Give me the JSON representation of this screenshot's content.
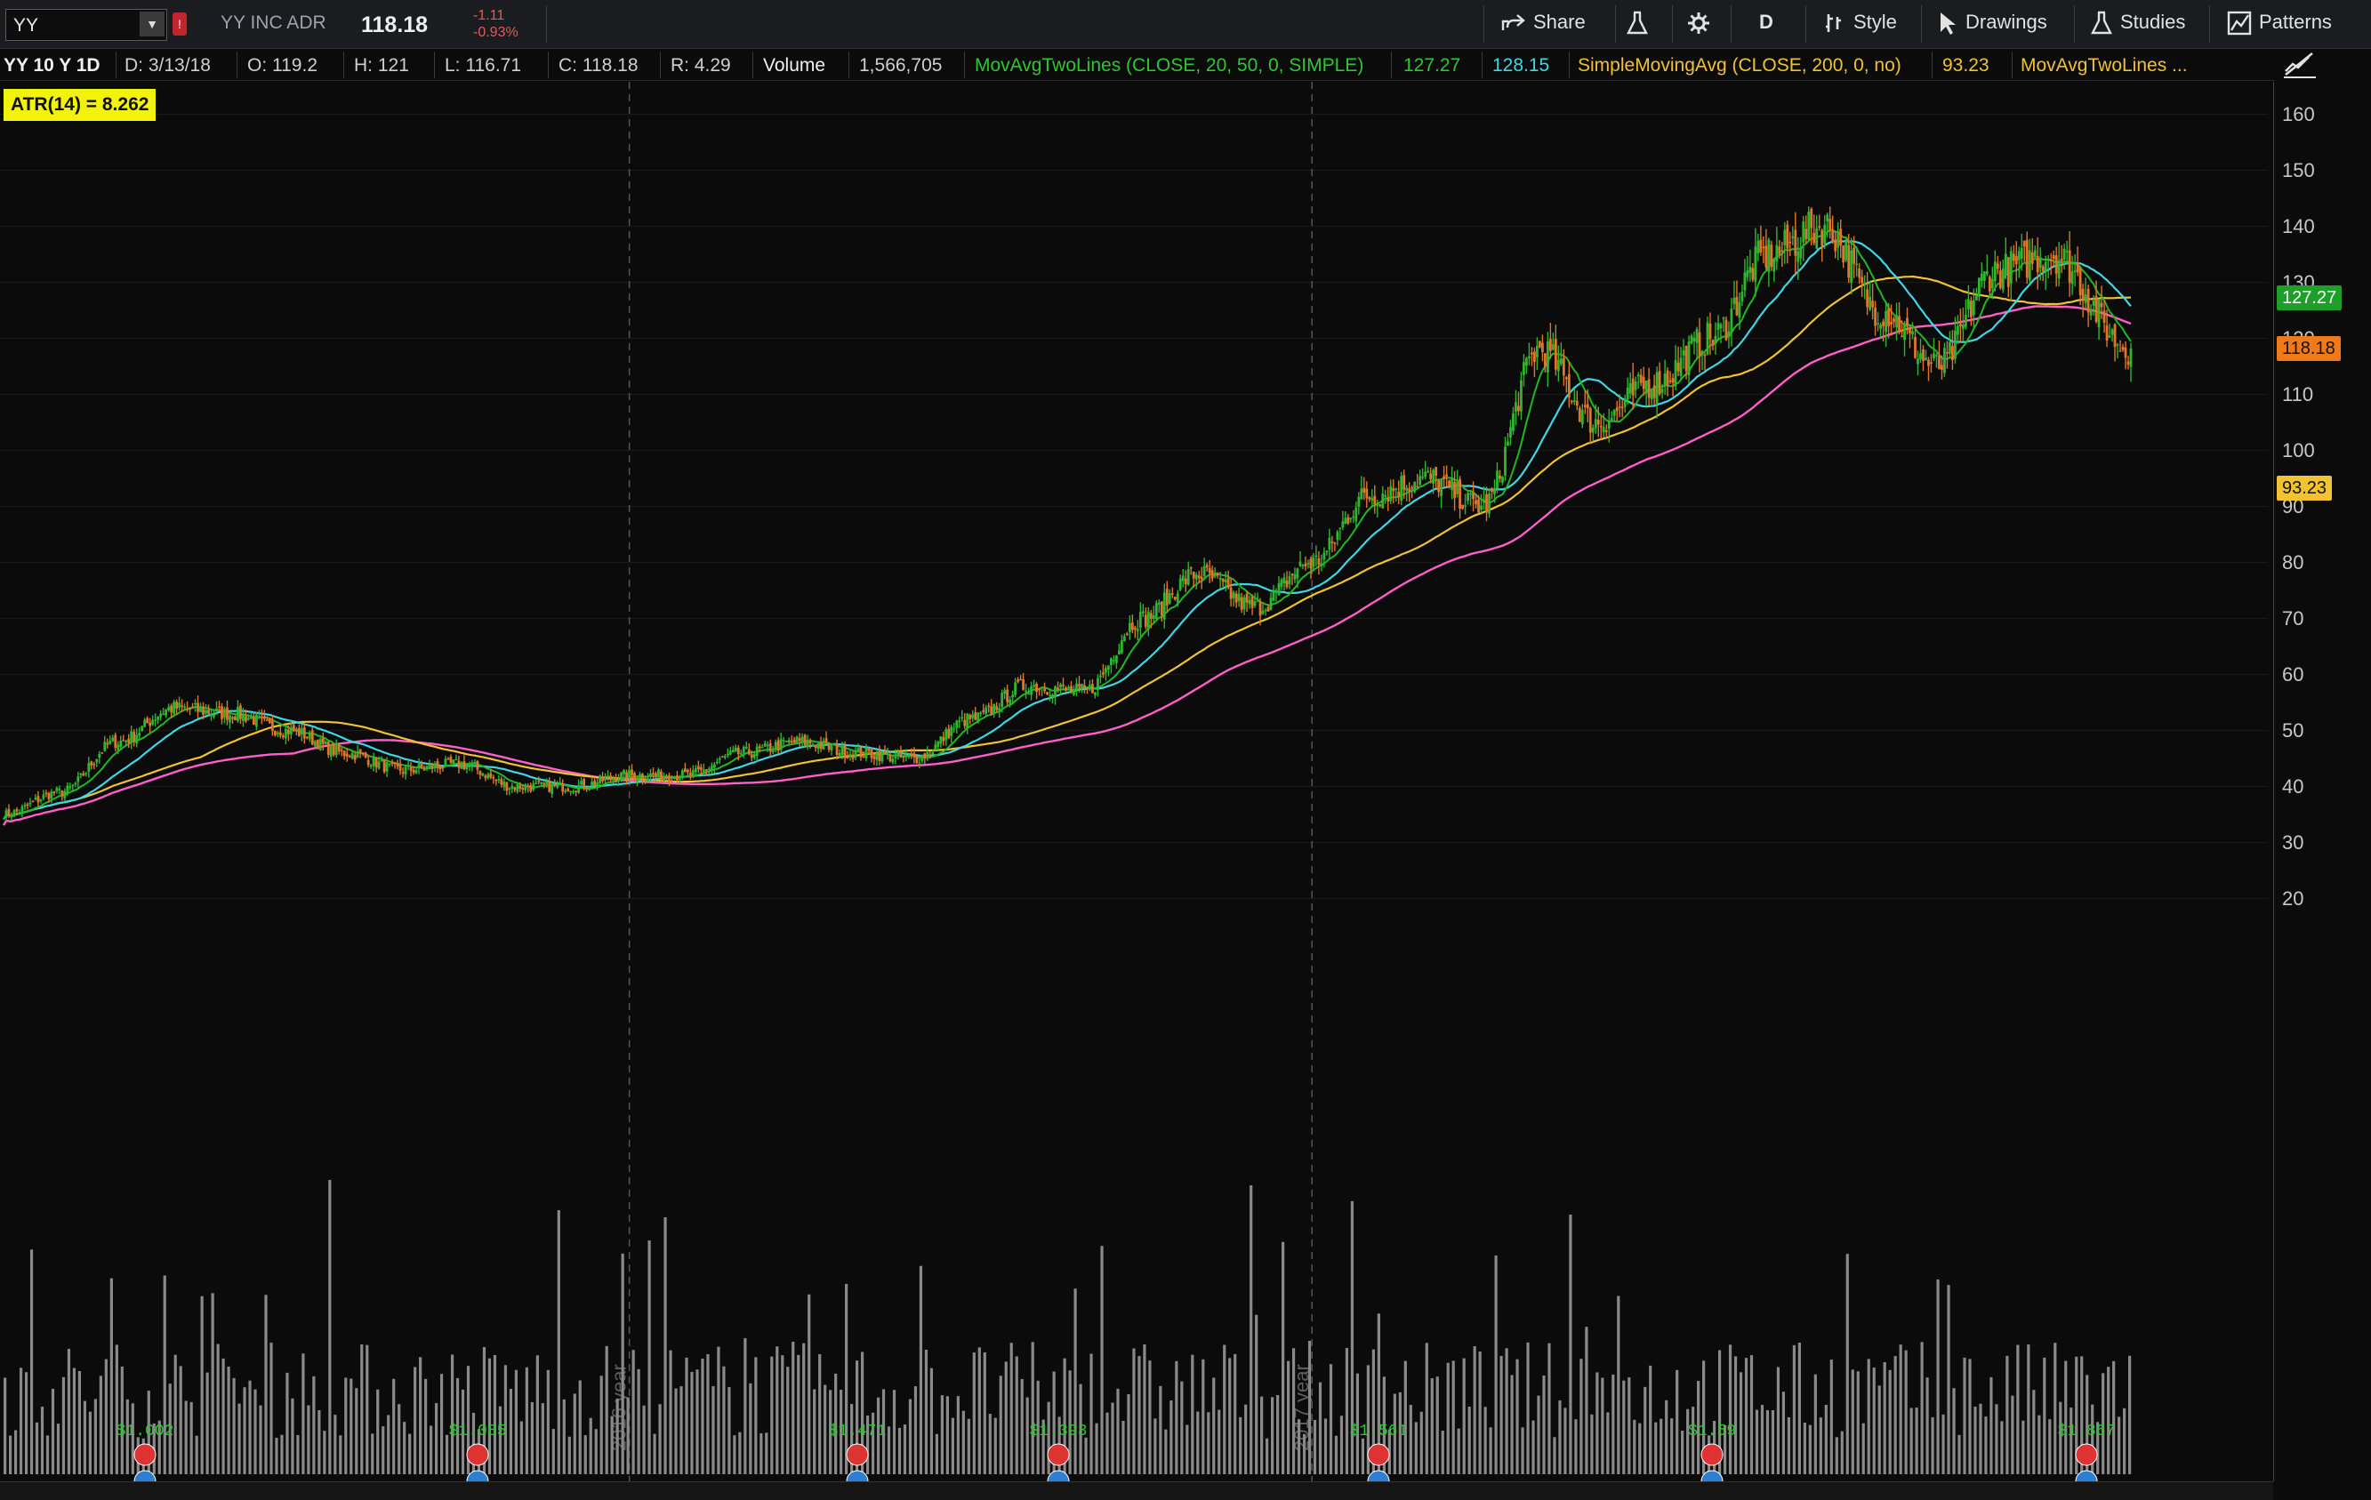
{
  "toolbar": {
    "symbol": "YY",
    "company": "YY INC ADR",
    "last": "118.18",
    "change": "-1.11",
    "change_pct": "-0.93%",
    "share": "Share",
    "aggregation": "D",
    "style": "Style",
    "drawings": "Drawings",
    "studies": "Studies",
    "patterns": "Patterns"
  },
  "infobar": {
    "period": "YY 10 Y 1D",
    "date": "D: 3/13/18",
    "open": "O: 119.2",
    "high": "H: 121",
    "low": "L: 116.71",
    "close": "C: 118.18",
    "range": "R: 4.29",
    "volume_label": "Volume",
    "volume": "1,566,705",
    "study1": "MovAvgTwoLines (CLOSE, 20, 50, 0, SIMPLE)",
    "study1_v1": "127.27",
    "study1_v2": "128.15",
    "study2": "SimpleMovingAvg (CLOSE, 200, 0, no)",
    "study2_v": "93.23",
    "study3": "MovAvgTwoLines ..."
  },
  "atr": "ATR(14) = 8.262",
  "price_badges": {
    "ma": "127.27",
    "last": "118.18",
    "sma200": "93.23"
  },
  "year_labels": [
    "2016 year",
    "2017 year"
  ],
  "earnings": [
    "$1.002",
    "$1.085",
    "$1.471",
    "$1.393",
    "$1.561",
    "$1.59",
    "$1.867"
  ],
  "colors": {
    "up": "#2fb52f",
    "down": "#e0762a",
    "ma20": "#20b820",
    "ma50": "#3fd6e6",
    "ma100": "#f1c232",
    "sma200": "#ff5fc8",
    "volume": "#8a8a8a"
  },
  "chart_data": {
    "type": "candlestick",
    "ylim": [
      15,
      163
    ],
    "yticks": [
      20,
      30,
      40,
      50,
      60,
      70,
      80,
      90,
      100,
      110,
      120,
      130,
      140,
      150,
      160
    ],
    "x_range": [
      "2015-02",
      "2018-03-13"
    ],
    "close_path": [
      [
        "2015-02",
        35
      ],
      [
        "2015-03",
        39
      ],
      [
        "2015-04",
        48
      ],
      [
        "2015-05",
        54
      ],
      [
        "2015-06",
        53
      ],
      [
        "2015-07",
        50
      ],
      [
        "2015-08",
        46
      ],
      [
        "2015-09",
        43
      ],
      [
        "2015-10",
        44
      ],
      [
        "2015-11",
        40
      ],
      [
        "2015-12",
        40
      ],
      [
        "2016-01",
        42
      ],
      [
        "2016-02",
        42
      ],
      [
        "2016-03",
        46
      ],
      [
        "2016-04",
        48
      ],
      [
        "2016-05",
        46
      ],
      [
        "2016-06",
        45
      ],
      [
        "2016-07",
        52
      ],
      [
        "2016-08",
        58
      ],
      [
        "2016-09",
        57
      ],
      [
        "2016-10",
        70
      ],
      [
        "2016-11",
        78
      ],
      [
        "2016-12",
        72
      ],
      [
        "2017-01",
        80
      ],
      [
        "2017-02",
        92
      ],
      [
        "2017-03",
        95
      ],
      [
        "2017-04",
        90
      ],
      [
        "2017-05",
        118
      ],
      [
        "2017-06",
        105
      ],
      [
        "2017-07",
        112
      ],
      [
        "2017-08",
        120
      ],
      [
        "2017-09",
        135
      ],
      [
        "2017-10",
        140
      ],
      [
        "2017-11",
        125
      ],
      [
        "2017-12",
        115
      ],
      [
        "2018-01",
        132
      ],
      [
        "2018-02",
        135
      ],
      [
        "2018-03-13",
        118.18
      ]
    ],
    "ma20_last": 127.27,
    "ma50_last": 128.15,
    "sma200_last": 93.23
  }
}
